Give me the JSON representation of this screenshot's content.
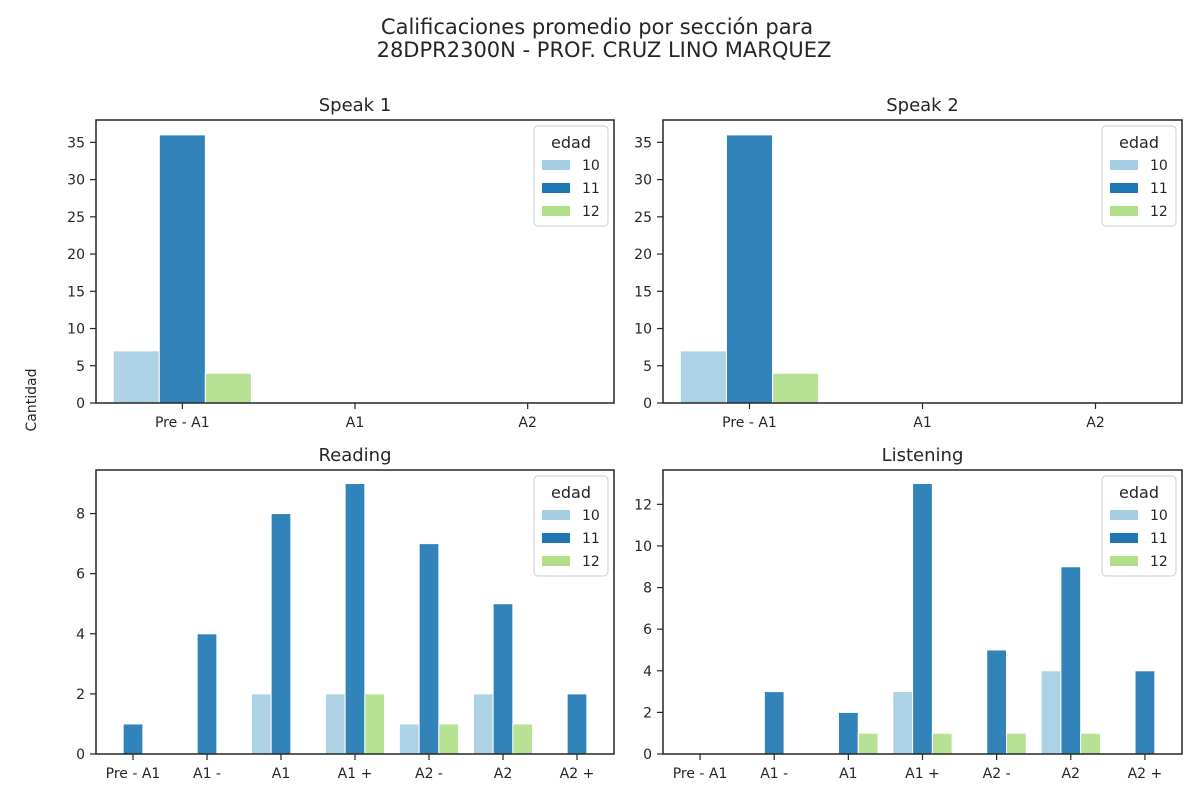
{
  "figure": {
    "title_line1": "Calificaciones promedio por sección para",
    "title_line2": "28DPR2300N - PROF. CRUZ LINO MARQUEZ",
    "ylabel": "Cantidad"
  },
  "colors": {
    "10": "#a6cee3",
    "11": "#1f78b4",
    "12": "#b2df8a"
  },
  "chart_data": [
    {
      "type": "bar",
      "title": "Speak 1",
      "categories": [
        "Pre - A1",
        "A1",
        "A2"
      ],
      "legend_title": "edad",
      "legend_placement": "top-right",
      "ylim": [
        0,
        38
      ],
      "yticks": [
        0,
        5,
        10,
        15,
        20,
        25,
        30,
        35
      ],
      "series": [
        {
          "name": "10",
          "values": [
            7,
            0,
            0
          ]
        },
        {
          "name": "11",
          "values": [
            36,
            0,
            0
          ]
        },
        {
          "name": "12",
          "values": [
            4,
            0,
            0
          ]
        }
      ]
    },
    {
      "type": "bar",
      "title": "Speak 2",
      "categories": [
        "Pre - A1",
        "A1",
        "A2"
      ],
      "legend_title": "edad",
      "legend_placement": "top-right",
      "ylim": [
        0,
        38
      ],
      "yticks": [
        0,
        5,
        10,
        15,
        20,
        25,
        30,
        35
      ],
      "series": [
        {
          "name": "10",
          "values": [
            7,
            0,
            0
          ]
        },
        {
          "name": "11",
          "values": [
            36,
            0,
            0
          ]
        },
        {
          "name": "12",
          "values": [
            4,
            0,
            0
          ]
        }
      ]
    },
    {
      "type": "bar",
      "title": "Reading",
      "categories": [
        "Pre - A1",
        "A1 -",
        "A1",
        "A1 +",
        "A2 -",
        "A2",
        "A2 +"
      ],
      "legend_title": "edad",
      "legend_placement": "top-right",
      "ylim": [
        0,
        9.45
      ],
      "yticks": [
        0,
        2,
        4,
        6,
        8
      ],
      "series": [
        {
          "name": "10",
          "values": [
            0,
            0,
            2,
            2,
            1,
            2,
            0
          ]
        },
        {
          "name": "11",
          "values": [
            1,
            4,
            8,
            9,
            7,
            5,
            2
          ]
        },
        {
          "name": "12",
          "values": [
            0,
            0,
            0,
            2,
            1,
            1,
            0
          ]
        }
      ]
    },
    {
      "type": "bar",
      "title": "Listening",
      "categories": [
        "Pre - A1",
        "A1 -",
        "A1",
        "A1 +",
        "A2 -",
        "A2",
        "A2 +"
      ],
      "legend_title": "edad",
      "legend_placement": "top-right",
      "ylim": [
        0,
        13.65
      ],
      "yticks": [
        0,
        2,
        4,
        6,
        8,
        10,
        12
      ],
      "series": [
        {
          "name": "10",
          "values": [
            0,
            0,
            0,
            3,
            0,
            4,
            0
          ]
        },
        {
          "name": "11",
          "values": [
            0,
            3,
            2,
            13,
            5,
            9,
            4
          ]
        },
        {
          "name": "12",
          "values": [
            0,
            0,
            1,
            1,
            1,
            1,
            0
          ]
        }
      ]
    }
  ]
}
